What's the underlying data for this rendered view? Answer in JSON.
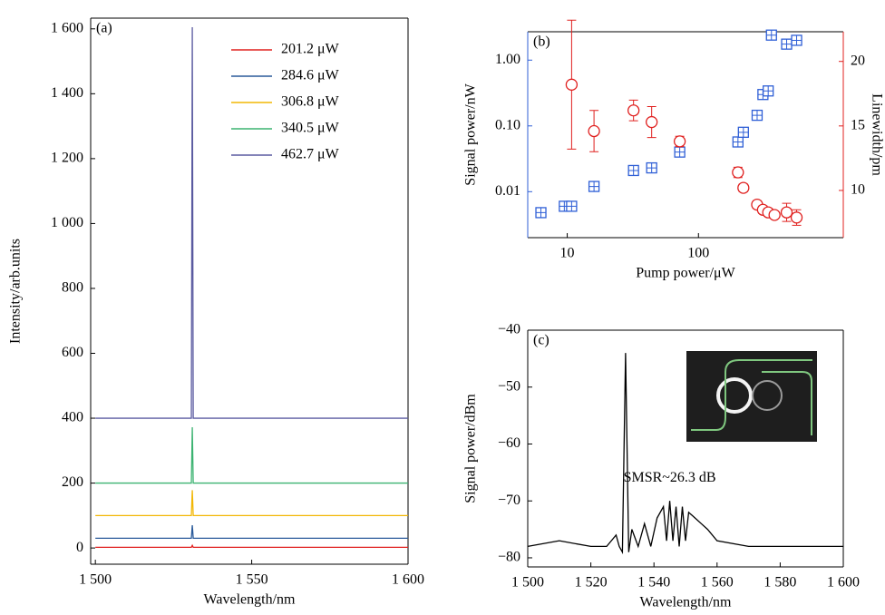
{
  "chart_data": [
    {
      "type": "line",
      "panel_label": "(a)",
      "x_label": "Wavelength/nm",
      "y_label": "Intensity/arb.units",
      "x": [
        1500,
        1530.7,
        1531,
        1531.3,
        1600
      ],
      "series": [
        {
          "name": "201.2 μW",
          "color": "#e0201f",
          "values": [
            2,
            2,
            8,
            2,
            2
          ]
        },
        {
          "name": "284.6 μW",
          "color": "#2a5a9a",
          "values": [
            30,
            30,
            70,
            30,
            30
          ]
        },
        {
          "name": "306.8 μW",
          "color": "#f2b705",
          "values": [
            100,
            100,
            178,
            100,
            100
          ]
        },
        {
          "name": "340.5 μW",
          "color": "#3cb371",
          "values": [
            200,
            200,
            372,
            200,
            200
          ]
        },
        {
          "name": "462.7 μW",
          "color": "#5a5aa0",
          "values": [
            400,
            400,
            1605,
            400,
            400
          ]
        }
      ],
      "xlim": [
        1498.5,
        1600
      ],
      "xticks": [
        {
          "value": 1500,
          "label": "1 500"
        },
        {
          "value": 1550,
          "label": "1 550"
        },
        {
          "value": 1600,
          "label": "1 600"
        }
      ],
      "ylim": [
        -50,
        1633
      ],
      "yticks": [
        0,
        200,
        400,
        600,
        800,
        {
          "value": 1000,
          "label": "1 000"
        },
        {
          "value": 1200,
          "label": "1 200"
        },
        {
          "value": 1400,
          "label": "1 400"
        },
        {
          "value": 1600,
          "label": "1 600"
        }
      ],
      "legend": "upper right"
    },
    {
      "type": "scatter",
      "panel_label": "(b)",
      "x_label": "Pump power/μW",
      "y_label": "Signal power/nW",
      "y2_label": "Linewidth/pm",
      "xscale": "log",
      "yscale": "log",
      "xlim": [
        5,
        1270
      ],
      "xticks": [
        10,
        100
      ],
      "ylim": [
        0.002,
        2.7
      ],
      "yticks": [
        0.01,
        {
          "value": 0.1,
          "label": "0.10"
        },
        {
          "value": 1,
          "label": "1.00"
        }
      ],
      "y2lim": [
        6.34,
        22.3
      ],
      "y2ticks": [
        10,
        15,
        20
      ],
      "series": [
        {
          "color": "#2f5fd6",
          "marker": "square",
          "x": [
            6.3,
            9.5,
            10.8,
            16,
            32,
            44,
            72,
            200,
            220,
            280,
            310,
            340,
            360,
            470,
            560
          ],
          "values": [
            0.0048,
            0.006,
            0.006,
            0.012,
            0.021,
            0.023,
            0.04,
            0.057,
            0.08,
            0.145,
            0.3,
            0.34,
            2.4,
            1.75,
            2.0
          ]
        },
        {
          "color": "#e0201f",
          "marker": "circle",
          "axis": "y2",
          "x": [
            10.8,
            16,
            32,
            44,
            72,
            200,
            220,
            280,
            310,
            340,
            380,
            470,
            560
          ],
          "values": [
            18.2,
            14.6,
            16.2,
            15.3,
            13.8,
            11.4,
            10.2,
            8.9,
            8.5,
            8.3,
            8.1,
            8.3,
            7.9
          ],
          "errors": [
            5,
            1.6,
            0.8,
            1.2,
            0.4,
            0.4,
            0.3,
            0.3,
            0.3,
            0.3,
            0.2,
            0.7,
            0.6
          ]
        }
      ]
    },
    {
      "type": "line",
      "panel_label": "(c)",
      "x_label": "Wavelength/nm",
      "y_label": "Signal power/dBm",
      "annotation": "SMSR~26.3 dB",
      "annotation_color": "#e0201f",
      "x": [
        1500,
        1510,
        1520,
        1525,
        1528,
        1529,
        1530,
        1531,
        1532,
        1533,
        1535,
        1537,
        1539,
        1541,
        1543,
        1544,
        1545,
        1546,
        1547,
        1548,
        1549,
        1550,
        1551,
        1553,
        1555,
        1557,
        1560,
        1570,
        1580,
        1590,
        1600
      ],
      "series": [
        {
          "color": "#000000",
          "values": [
            -78,
            -77,
            -78,
            -78,
            -76,
            -78,
            -79,
            -44,
            -79,
            -75,
            -78,
            -74,
            -78,
            -73,
            -71,
            -77,
            -70,
            -77,
            -71,
            -78,
            -71,
            -77,
            -72,
            -73,
            -74,
            -75,
            -77,
            -78,
            -78,
            -78,
            -78
          ]
        }
      ],
      "xlim": [
        1500,
        1600
      ],
      "xticks": [
        {
          "value": 1500,
          "label": "1 500"
        },
        {
          "value": 1520,
          "label": "1 520"
        },
        {
          "value": 1540,
          "label": "1 540"
        },
        {
          "value": 1560,
          "label": "1 560"
        },
        {
          "value": 1580,
          "label": "1 580"
        },
        {
          "value": 1600,
          "label": "1 600"
        }
      ],
      "ylim": [
        -81.6,
        -40
      ],
      "yticks": [
        {
          "value": -80,
          "label": "−80"
        },
        {
          "value": -70,
          "label": "−70"
        },
        {
          "value": -60,
          "label": "−60"
        },
        {
          "value": -50,
          "label": "−50"
        },
        {
          "value": -40,
          "label": "−40"
        }
      ]
    }
  ]
}
